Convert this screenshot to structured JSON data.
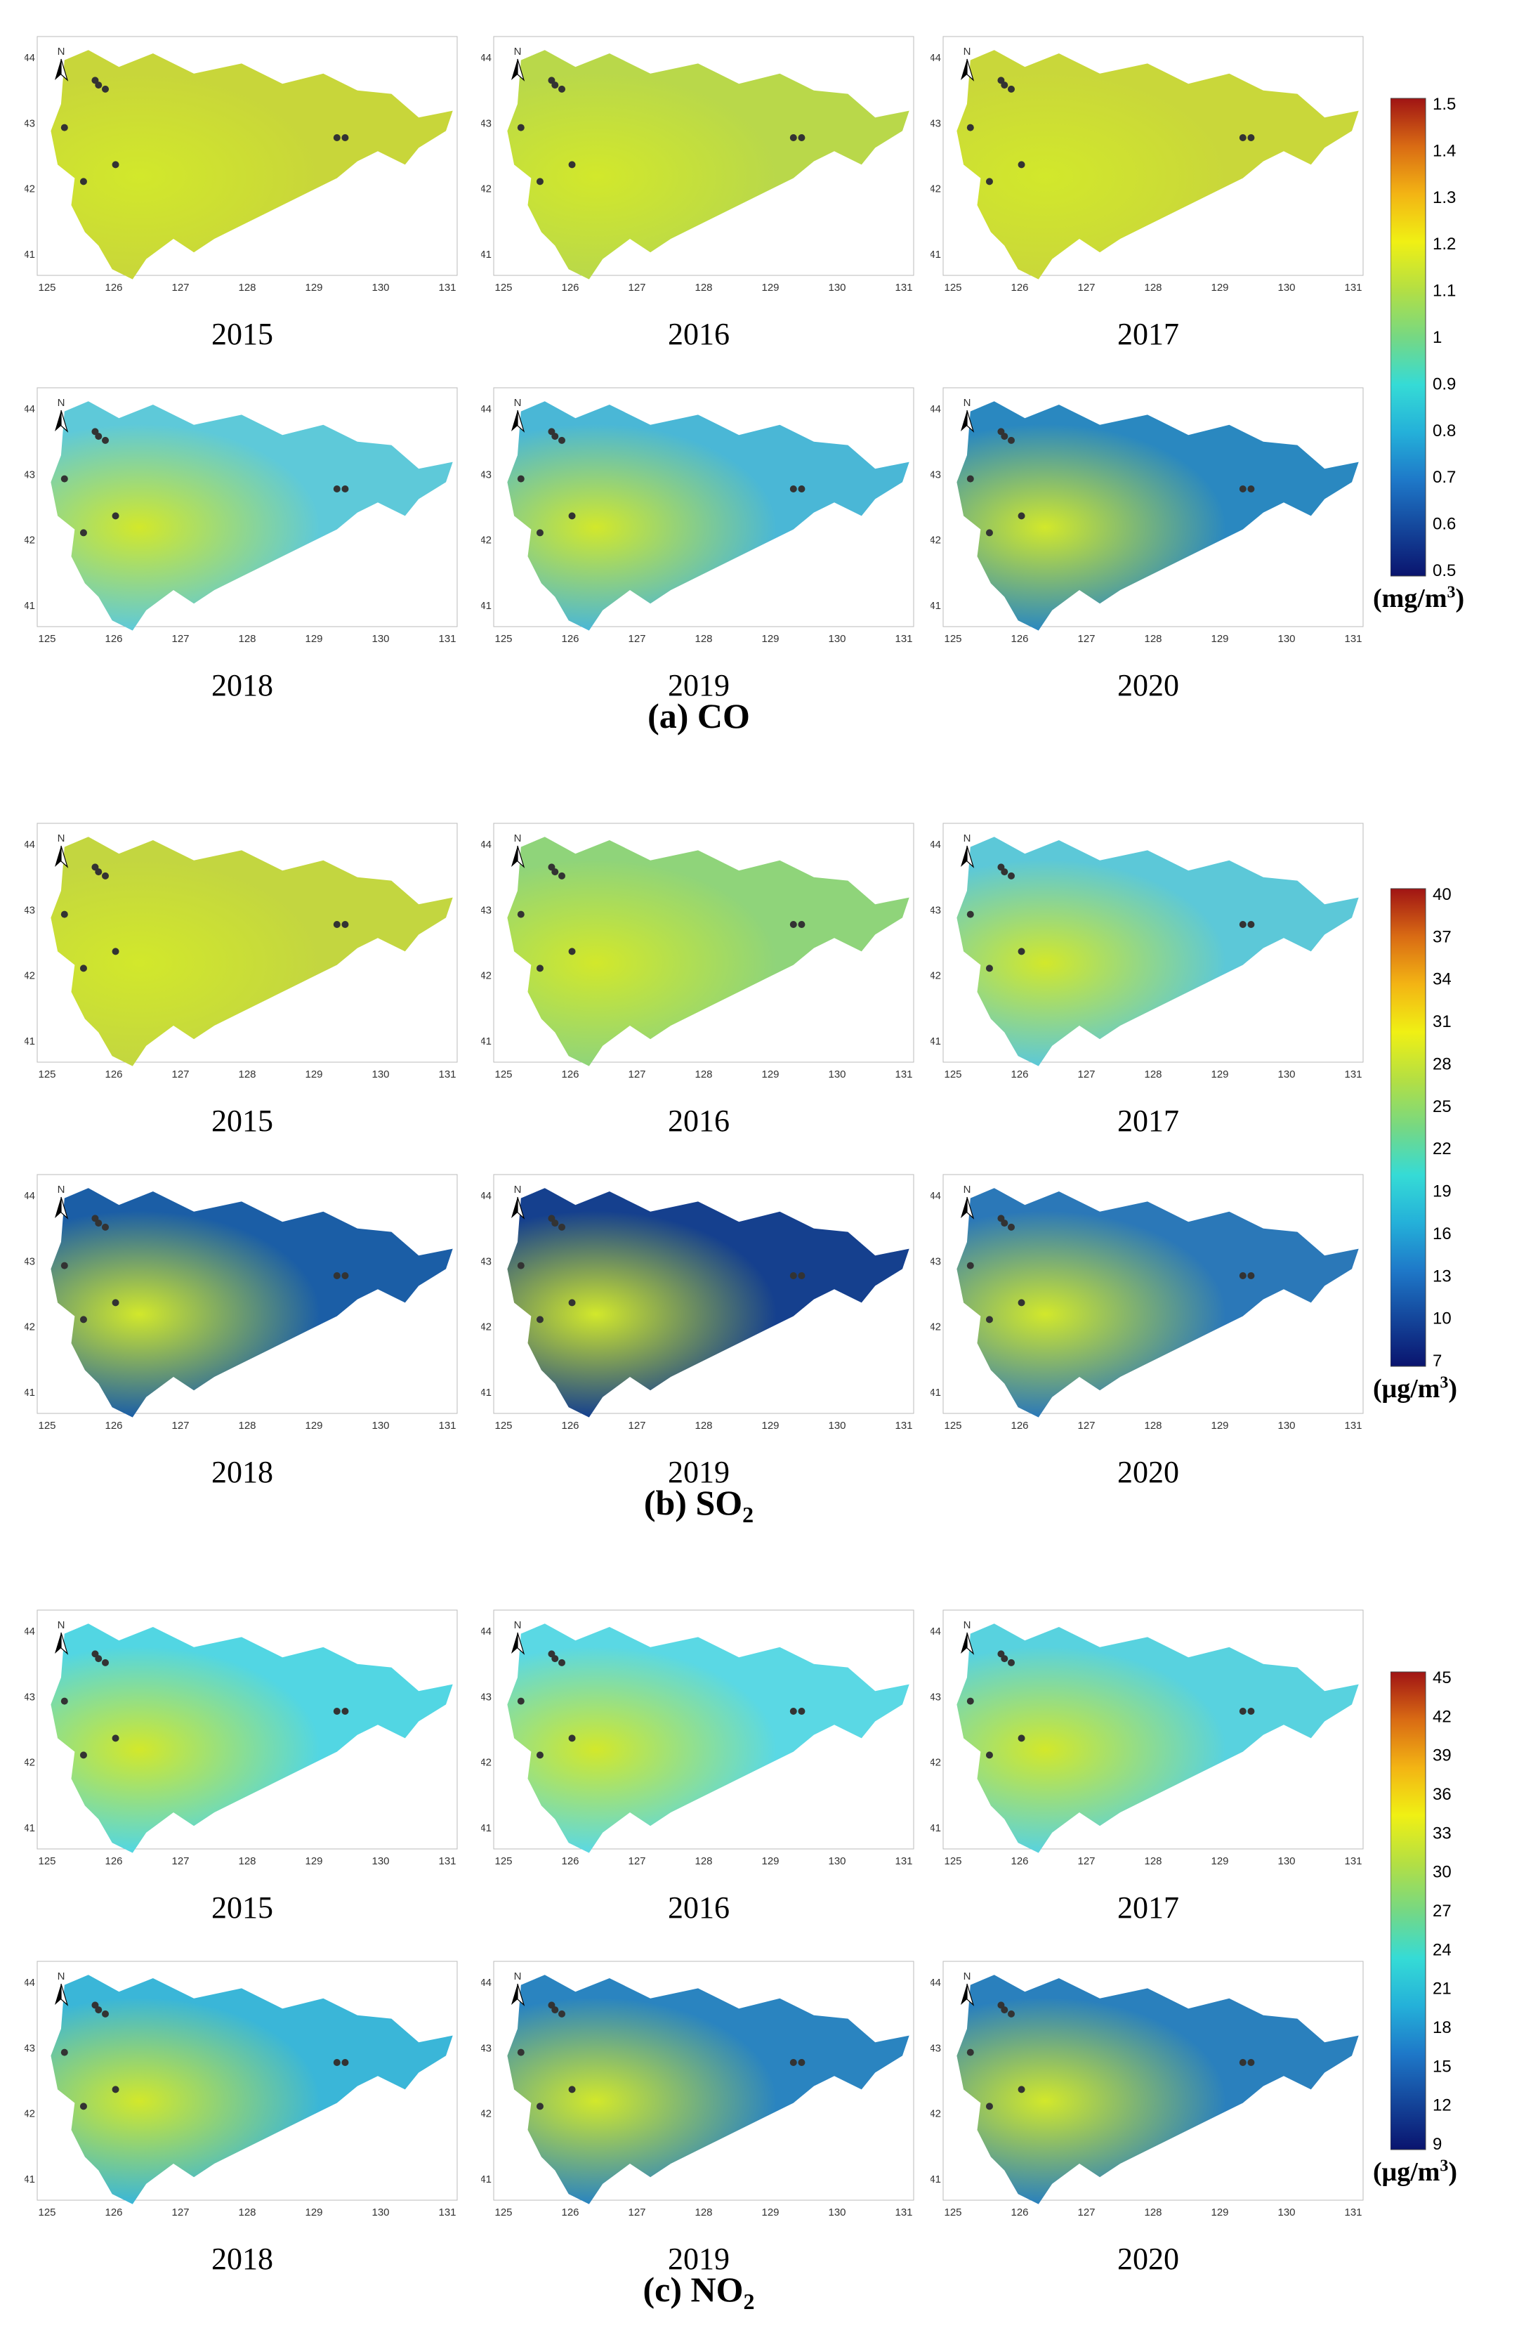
{
  "panels": [
    {
      "pollutant": "co",
      "title_main": "(a) CO",
      "title_sub": "",
      "unit_pre": "(mg/m",
      "unit_sup": "3",
      "unit_post": ")",
      "ticks": [
        "1.5",
        "1.4",
        "1.3",
        "1.2",
        "1.1",
        "1",
        "0.9",
        "0.8",
        "0.7",
        "0.6",
        "0.5"
      ],
      "maps": [
        {
          "year": "2015",
          "fill": "#c8d63a"
        },
        {
          "year": "2016",
          "fill": "#b9d84a"
        },
        {
          "year": "2017",
          "fill": "#c9d73a"
        },
        {
          "year": "2018",
          "fill": "#5ec9d9"
        },
        {
          "year": "2019",
          "fill": "#4ab7d6"
        },
        {
          "year": "2020",
          "fill": "#2a88c0"
        }
      ]
    },
    {
      "pollutant": "so2",
      "title_main": "(b) SO",
      "title_sub": "2",
      "unit_pre": "(μg/m",
      "unit_sup": "3",
      "unit_post": ")",
      "ticks": [
        "40",
        "37",
        "34",
        "31",
        "28",
        "25",
        "22",
        "19",
        "16",
        "13",
        "10",
        "7"
      ],
      "maps": [
        {
          "year": "2015",
          "fill": "#c3d640"
        },
        {
          "year": "2016",
          "fill": "#8fd47a"
        },
        {
          "year": "2017",
          "fill": "#5cc8d8"
        },
        {
          "year": "2018",
          "fill": "#1b5ea6"
        },
        {
          "year": "2019",
          "fill": "#15408e"
        },
        {
          "year": "2020",
          "fill": "#2b78b8"
        }
      ]
    },
    {
      "pollutant": "no2",
      "title_main": "(c) NO",
      "title_sub": "2",
      "unit_pre": "(μg/m",
      "unit_sup": "3",
      "unit_post": ")",
      "ticks": [
        "45",
        "42",
        "39",
        "36",
        "33",
        "30",
        "27",
        "24",
        "21",
        "18",
        "15",
        "12",
        "9"
      ],
      "maps": [
        {
          "year": "2015",
          "fill": "#52d6e3"
        },
        {
          "year": "2016",
          "fill": "#5ad8e4"
        },
        {
          "year": "2017",
          "fill": "#58d2df"
        },
        {
          "year": "2018",
          "fill": "#3ab6d8"
        },
        {
          "year": "2019",
          "fill": "#2a84c0"
        },
        {
          "year": "2020",
          "fill": "#2a80bd"
        }
      ]
    }
  ],
  "axes": {
    "x_ticks": [
      "125",
      "126",
      "127",
      "128",
      "129",
      "130",
      "131"
    ],
    "y_ticks": [
      "44",
      "43",
      "42",
      "41"
    ],
    "north": "N"
  }
}
